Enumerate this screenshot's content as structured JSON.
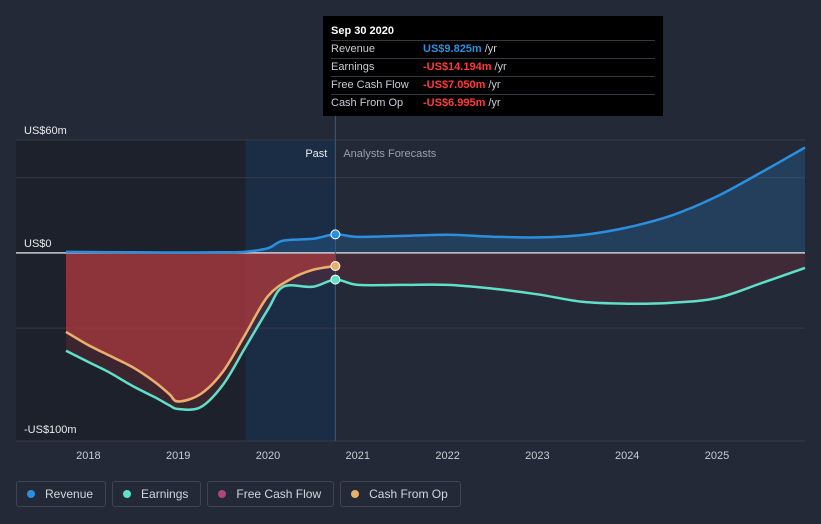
{
  "colors": {
    "background": "#232936",
    "revenue": "#2b8fe0",
    "earnings": "#5fe0c8",
    "free_cash_flow": "#b0467d",
    "cash_from_op": "#e8b06a",
    "negative_fill": "#a83a3e",
    "past_highlight": "#1b2c45",
    "negative": "#ff3b3b",
    "revenue_value": "#2b8fe0"
  },
  "tooltip": {
    "date": "Sep 30 2020",
    "rows": [
      {
        "label": "Revenue",
        "value": "US$9.825m",
        "unit": "/yr",
        "color": "#2b8fe0"
      },
      {
        "label": "Earnings",
        "value": "-US$14.194m",
        "unit": "/yr",
        "color": "#ff3b3b"
      },
      {
        "label": "Free Cash Flow",
        "value": "-US$7.050m",
        "unit": "/yr",
        "color": "#ff3b3b"
      },
      {
        "label": "Cash From Op",
        "value": "-US$6.995m",
        "unit": "/yr",
        "color": "#ff3b3b"
      }
    ]
  },
  "legend": [
    {
      "label": "Revenue",
      "color": "#2b8fe0"
    },
    {
      "label": "Earnings",
      "color": "#5fe0c8"
    },
    {
      "label": "Free Cash Flow",
      "color": "#b0467d"
    },
    {
      "label": "Cash From Op",
      "color": "#e8b06a"
    }
  ],
  "chart_data": {
    "type": "line",
    "title": "",
    "xlabel": "",
    "ylabel": "",
    "y_tick_labels": [
      {
        "value": 60,
        "label": "US$60m"
      },
      {
        "value": 0,
        "label": "US$0"
      },
      {
        "value": -100,
        "label": "-US$100m"
      }
    ],
    "ylim": [
      -100,
      60
    ],
    "xlim": [
      2017.55,
      2025.98
    ],
    "x_ticks": [
      2018,
      2019,
      2020,
      2021,
      2022,
      2023,
      2024,
      2025
    ],
    "x_tick_labels": [
      "2018",
      "2019",
      "2020",
      "2021",
      "2022",
      "2023",
      "2024",
      "2025"
    ],
    "past_label": "Past",
    "forecast_label": "Analysts Forecasts",
    "divider_x": 2020.75,
    "grid": true,
    "legend_position": "bottom-left",
    "series": [
      {
        "name": "Revenue",
        "points": [
          [
            2017.75,
            0.5
          ],
          [
            2018.5,
            0.3
          ],
          [
            2019.0,
            0.2
          ],
          [
            2019.5,
            0.3
          ],
          [
            2019.75,
            0.6
          ],
          [
            2020.0,
            2.5
          ],
          [
            2020.17,
            6.5
          ],
          [
            2020.5,
            7.5
          ],
          [
            2020.75,
            9.825
          ],
          [
            2021.0,
            8.5
          ],
          [
            2021.5,
            9.0
          ],
          [
            2022.0,
            9.6
          ],
          [
            2022.5,
            8.6
          ],
          [
            2023.0,
            8.2
          ],
          [
            2023.5,
            9.5
          ],
          [
            2024.0,
            13.5
          ],
          [
            2024.5,
            20.0
          ],
          [
            2025.0,
            30.0
          ],
          [
            2025.5,
            43.0
          ],
          [
            2025.98,
            56.0
          ]
        ]
      },
      {
        "name": "Earnings",
        "points": [
          [
            2017.75,
            -52.0
          ],
          [
            2018.0,
            -58.0
          ],
          [
            2018.25,
            -64.0
          ],
          [
            2018.5,
            -71.0
          ],
          [
            2018.75,
            -77.0
          ],
          [
            2018.9,
            -81.0
          ],
          [
            2019.0,
            -83.0
          ],
          [
            2019.25,
            -82.0
          ],
          [
            2019.5,
            -70.0
          ],
          [
            2019.75,
            -50.0
          ],
          [
            2020.0,
            -30.0
          ],
          [
            2020.17,
            -18.0
          ],
          [
            2020.5,
            -18.0
          ],
          [
            2020.75,
            -14.194
          ],
          [
            2021.0,
            -17.0
          ],
          [
            2021.5,
            -17.0
          ],
          [
            2022.0,
            -17.0
          ],
          [
            2022.5,
            -19.0
          ],
          [
            2023.0,
            -22.0
          ],
          [
            2023.5,
            -26.0
          ],
          [
            2024.0,
            -27.0
          ],
          [
            2024.5,
            -26.5
          ],
          [
            2025.0,
            -24.0
          ],
          [
            2025.5,
            -16.0
          ],
          [
            2025.98,
            -8.0
          ]
        ]
      },
      {
        "name": "Free Cash Flow",
        "points": [
          [
            2017.75,
            -42.0
          ],
          [
            2018.0,
            -49.0
          ],
          [
            2018.25,
            -55.0
          ],
          [
            2018.5,
            -61.0
          ],
          [
            2018.75,
            -69.0
          ],
          [
            2018.9,
            -75.0
          ],
          [
            2019.0,
            -79.0
          ],
          [
            2019.25,
            -75.0
          ],
          [
            2019.5,
            -63.0
          ],
          [
            2019.75,
            -43.0
          ],
          [
            2020.0,
            -23.0
          ],
          [
            2020.25,
            -14.0
          ],
          [
            2020.5,
            -9.0
          ],
          [
            2020.75,
            -7.05
          ]
        ]
      },
      {
        "name": "Cash From Op",
        "points": [
          [
            2017.75,
            -42.0
          ],
          [
            2018.0,
            -49.0
          ],
          [
            2018.25,
            -55.0
          ],
          [
            2018.5,
            -61.0
          ],
          [
            2018.75,
            -69.0
          ],
          [
            2018.9,
            -75.0
          ],
          [
            2019.0,
            -79.0
          ],
          [
            2019.25,
            -75.0
          ],
          [
            2019.5,
            -63.0
          ],
          [
            2019.75,
            -43.0
          ],
          [
            2020.0,
            -23.0
          ],
          [
            2020.25,
            -14.0
          ],
          [
            2020.5,
            -9.0
          ],
          [
            2020.75,
            -6.995
          ]
        ]
      }
    ]
  }
}
